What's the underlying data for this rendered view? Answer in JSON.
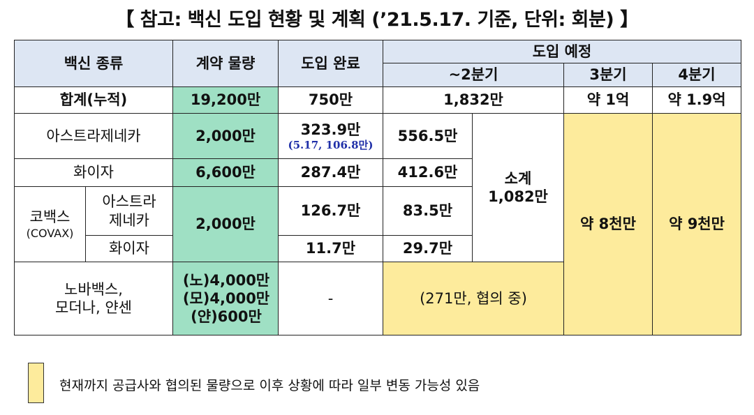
{
  "title": "【 참고: 백신 도입 현황 및 계획 (’21.5.17. 기준, 단위: 회분) 】",
  "headers": {
    "vaccine_type": "백신 종류",
    "contract_quantity": "계약 물량",
    "introduced": "도입 완료",
    "planned": "도입 예정",
    "q2": "~2분기",
    "q3": "3분기",
    "q4": "4분기"
  },
  "total_row": {
    "label": "합계(누적)",
    "contract": "19,200만",
    "introduced": "750만",
    "q2": "1,832만",
    "q3": "약 1억",
    "q4": "약 1.9억"
  },
  "astrazeneca": {
    "label": "아스트라제네카",
    "contract": "2,000만",
    "introduced": "323.9만",
    "introduced_note": "(5.17, 106.8만)",
    "q2": "556.5만"
  },
  "pfizer": {
    "label": "화이자",
    "contract": "6,600만",
    "introduced": "287.4만",
    "q2": "412.6만"
  },
  "subtotal": {
    "label": "소계",
    "value": "1,082만"
  },
  "q3_estimate": "약 8천만",
  "q4_estimate": "약 9천만",
  "covax": {
    "label": "코백스",
    "label_en": "(COVAX)",
    "contract": "2,000만",
    "az_label_1": "아스트라",
    "az_label_2": "제네카",
    "az_introduced": "126.7만",
    "az_q2": "83.5만",
    "pfizer_label": "화이자",
    "pfizer_introduced": "11.7만",
    "pfizer_q2": "29.7만"
  },
  "others": {
    "label_1": "노바백스,",
    "label_2": "모더나, 얀센",
    "contract_1": "(노)4,000만",
    "contract_2": "(모)4,000만",
    "contract_3": "(얀)600만",
    "introduced": "-",
    "q2": "(271만, 협의 중)"
  },
  "legend": {
    "text": "현재까지 공급사와 협의된 물량으로 이후 상황에 따라 일부 변동 가능성 있음",
    "color": "#fdeb9c"
  },
  "colors": {
    "header_bg": "#dde6f3",
    "contract_green": "#9fe0c4",
    "planned_yellow": "#fdeb9c",
    "note_blue": "#1f2fa8"
  }
}
